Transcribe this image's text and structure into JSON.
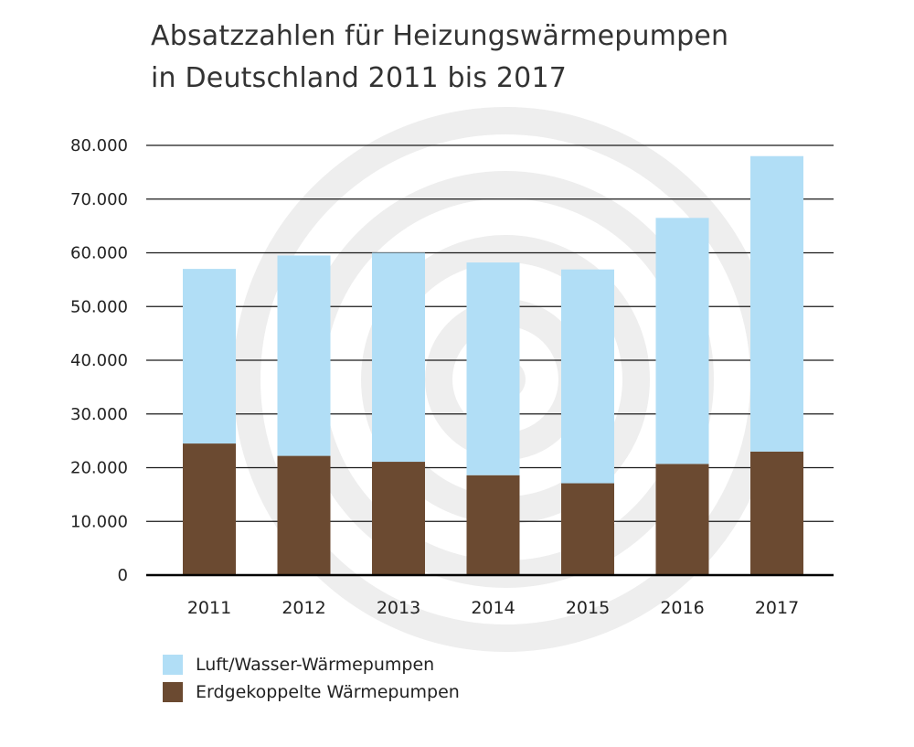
{
  "chart_data": {
    "type": "bar",
    "stacked": true,
    "title": "Absatzzahlen für Heizungswärmepumpen in Deutschland 2011 bis 2017",
    "title_lines": [
      "Absatzzahlen für Heizungswärmepumpen",
      "in Deutschland 2011 bis 2017"
    ],
    "xlabel": "",
    "ylabel": "",
    "categories": [
      "2011",
      "2012",
      "2013",
      "2014",
      "2015",
      "2016",
      "2017"
    ],
    "series": [
      {
        "name": "Erdgekoppelte Wärmepumpen",
        "color": "#6b4a31",
        "values": [
          24500,
          22200,
          21100,
          18600,
          17100,
          20700,
          23000
        ]
      },
      {
        "name": "Luft/Wasser-Wärmepumpen",
        "color": "#b1def6",
        "values": [
          32500,
          37300,
          38900,
          39600,
          39800,
          45800,
          55000
        ]
      }
    ],
    "ylim": [
      0,
      80000
    ],
    "yticks": [
      0,
      10000,
      20000,
      30000,
      40000,
      50000,
      60000,
      70000,
      80000
    ],
    "ytick_labels": [
      "0",
      "10.000",
      "20.000",
      "30.000",
      "40.000",
      "50.000",
      "60.000",
      "70.000",
      "80.000"
    ],
    "grid": true,
    "legend": {
      "position": "bottom-left",
      "items": [
        "Luft/Wasser-Wärmepumpen",
        "Erdgekoppelte Wärmepumpen"
      ]
    },
    "watermark": "concentric-spiral"
  }
}
